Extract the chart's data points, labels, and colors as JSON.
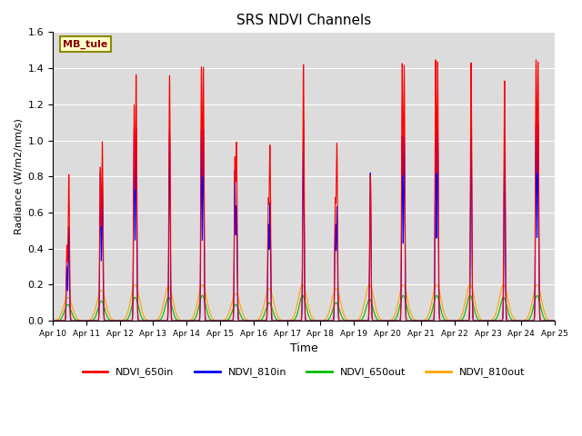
{
  "title": "SRS NDVI Channels",
  "xlabel": "Time",
  "ylabel": "Radiance (W/m2/nm/s)",
  "ylim": [
    0,
    1.6
  ],
  "xlim": [
    0,
    15
  ],
  "annotation": "MB_tule",
  "annotation_color": "#8B0000",
  "annotation_bg": "#FFFFCC",
  "annotation_border": "#8B8B00",
  "x_tick_labels": [
    "Apr 10",
    "Apr 11",
    "Apr 12",
    "Apr 13",
    "Apr 14",
    "Apr 15",
    "Apr 16",
    "Apr 17",
    "Apr 18",
    "Apr 19",
    "Apr 20",
    "Apr 21",
    "Apr 22",
    "Apr 23",
    "Apr 24",
    "Apr 25"
  ],
  "series": {
    "NDVI_650in": {
      "color": "#FF0000",
      "lw": 0.8
    },
    "NDVI_810in": {
      "color": "#0000FF",
      "lw": 0.8
    },
    "NDVI_650out": {
      "color": "#00BB00",
      "lw": 0.8
    },
    "NDVI_810out": {
      "color": "#FFA500",
      "lw": 0.8
    }
  },
  "bg_color": "#DCDCDC",
  "legend_labels": [
    "NDVI_650in",
    "NDVI_810in",
    "NDVI_650out",
    "NDVI_810out"
  ],
  "legend_colors": [
    "#FF0000",
    "#0000FF",
    "#00BB00",
    "#FFA500"
  ],
  "day_data": {
    "peaks_650in": [
      0.81,
      0.99,
      1.36,
      1.36,
      1.4,
      0.97,
      0.96,
      1.42,
      0.97,
      0.81,
      1.41,
      1.43,
      1.43,
      1.33,
      1.43
    ],
    "peaks2_650in": [
      0.41,
      0.84,
      1.18,
      0.0,
      1.39,
      0.86,
      0.63,
      0.0,
      0.63,
      0.0,
      1.41,
      1.43,
      0.0,
      0.0,
      1.43
    ],
    "peaks_810in": [
      0.52,
      0.77,
      1.07,
      1.06,
      1.06,
      0.63,
      0.65,
      1.11,
      0.63,
      0.82,
      1.02,
      1.09,
      1.09,
      1.03,
      1.1
    ],
    "peaks2_810in": [
      0.3,
      0.82,
      1.06,
      0.0,
      1.06,
      0.82,
      0.52,
      0.0,
      0.52,
      0.0,
      1.02,
      1.09,
      0.0,
      0.0,
      1.1
    ],
    "peaks_650out": [
      0.09,
      0.11,
      0.13,
      0.13,
      0.14,
      0.09,
      0.1,
      0.14,
      0.1,
      0.12,
      0.14,
      0.14,
      0.14,
      0.13,
      0.14
    ],
    "peaks_810out": [
      0.13,
      0.17,
      0.2,
      0.19,
      0.2,
      0.15,
      0.18,
      0.2,
      0.18,
      0.2,
      0.2,
      0.2,
      0.2,
      0.2,
      0.2
    ],
    "offset1": [
      0.42,
      0.42,
      0.43,
      0.43,
      0.44,
      0.44,
      0.44,
      0.44,
      0.44,
      0.44,
      0.44,
      0.44,
      0.44,
      0.44,
      0.44
    ],
    "offset2": [
      0.48,
      0.48,
      0.49,
      0.49,
      0.5,
      0.49,
      0.49,
      0.49,
      0.49,
      0.49,
      0.5,
      0.5,
      0.5,
      0.5,
      0.5
    ]
  }
}
